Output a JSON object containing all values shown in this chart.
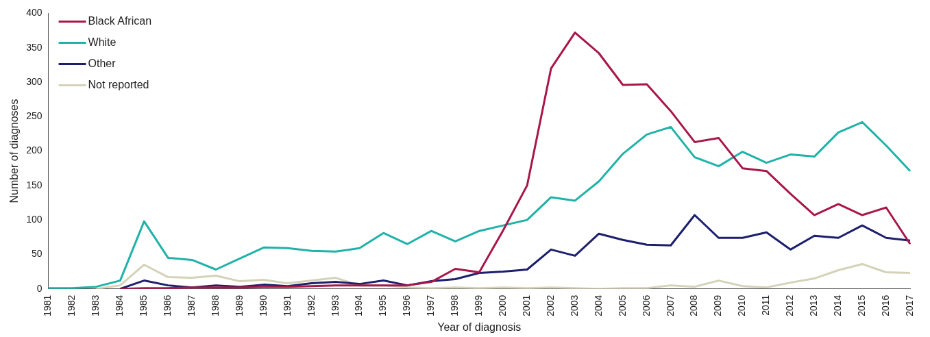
{
  "chart_data": {
    "type": "line",
    "xlabel": "Year of diagnosis",
    "ylabel": "Number of diagnoses",
    "categories": [
      "1981",
      "1982",
      "1983",
      "1984",
      "1985",
      "1986",
      "1987",
      "1988",
      "1989",
      "1990",
      "1991",
      "1992",
      "1993",
      "1994",
      "1995",
      "1996",
      "1997",
      "1998",
      "1999",
      "2000",
      "2001",
      "2002",
      "2003",
      "2004",
      "2005",
      "2006",
      "2007",
      "2008",
      "2009",
      "2010",
      "2011",
      "2012",
      "2013",
      "2014",
      "2015",
      "2016",
      "2017"
    ],
    "ylim": [
      0,
      400
    ],
    "yticks": [
      0,
      50,
      100,
      150,
      200,
      250,
      300,
      350,
      400
    ],
    "grid": false,
    "legend": "top left",
    "marker": "none",
    "line_style": "solid",
    "series": [
      {
        "name": "Black African",
        "color": "#a8174a",
        "values": [
          null,
          null,
          null,
          0,
          1,
          1,
          2,
          2,
          2,
          3,
          3,
          4,
          5,
          5,
          5,
          5,
          10,
          29,
          24,
          85,
          150,
          320,
          372,
          342,
          296,
          297,
          258,
          213,
          219,
          175,
          171,
          138,
          107,
          123,
          107,
          118,
          65
        ]
      },
      {
        "name": "White",
        "color": "#20b2a8",
        "values": [
          1,
          1,
          3,
          12,
          98,
          45,
          42,
          28,
          44,
          60,
          59,
          55,
          54,
          59,
          81,
          65,
          84,
          69,
          84,
          92,
          100,
          133,
          128,
          156,
          196,
          224,
          235,
          191,
          178,
          199,
          183,
          195,
          192,
          227,
          242,
          208,
          171
        ]
      },
      {
        "name": "Other",
        "color": "#1c1f6b",
        "values": [
          null,
          null,
          null,
          0,
          12,
          5,
          2,
          5,
          3,
          6,
          4,
          8,
          10,
          7,
          12,
          5,
          11,
          14,
          23,
          25,
          28,
          57,
          48,
          80,
          71,
          64,
          63,
          107,
          74,
          74,
          82,
          57,
          77,
          74,
          92,
          74,
          70
        ]
      },
      {
        "name": "Not reported",
        "color": "#d4d2b8",
        "values": [
          null,
          null,
          0,
          5,
          35,
          17,
          16,
          19,
          11,
          13,
          8,
          12,
          16,
          5,
          5,
          2,
          1,
          2,
          1,
          2,
          1,
          2,
          1,
          0,
          1,
          1,
          5,
          3,
          12,
          4,
          2,
          9,
          15,
          27,
          36,
          24,
          23
        ]
      }
    ]
  }
}
